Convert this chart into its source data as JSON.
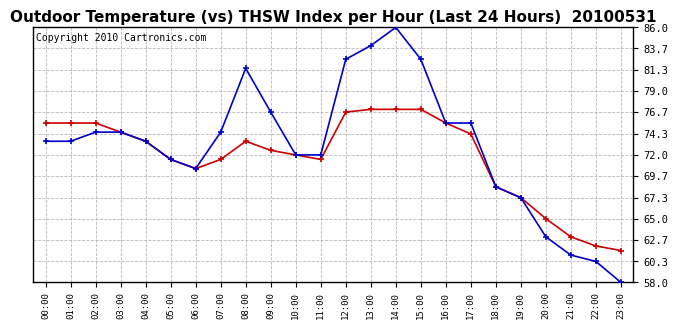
{
  "title": "Outdoor Temperature (vs) THSW Index per Hour (Last 24 Hours)  20100531",
  "copyright": "Copyright 2010 Cartronics.com",
  "hours": [
    "00:00",
    "01:00",
    "02:00",
    "03:00",
    "04:00",
    "05:00",
    "06:00",
    "07:00",
    "08:00",
    "09:00",
    "10:00",
    "11:00",
    "12:00",
    "13:00",
    "14:00",
    "15:00",
    "16:00",
    "17:00",
    "18:00",
    "19:00",
    "20:00",
    "21:00",
    "22:00",
    "23:00"
  ],
  "temp_red": [
    75.5,
    75.5,
    75.5,
    74.5,
    73.5,
    71.5,
    70.5,
    71.5,
    73.5,
    72.5,
    72.0,
    71.5,
    76.7,
    77.0,
    77.0,
    77.0,
    75.5,
    74.3,
    68.5,
    67.3,
    65.0,
    63.0,
    62.0,
    61.5
  ],
  "thsw_blue": [
    73.5,
    73.5,
    74.5,
    74.5,
    73.5,
    71.5,
    70.5,
    74.5,
    81.5,
    76.7,
    72.0,
    72.0,
    82.5,
    84.0,
    86.0,
    82.5,
    75.5,
    75.5,
    68.5,
    67.3,
    63.0,
    61.0,
    60.3,
    58.0
  ],
  "ylim": [
    58.0,
    86.0
  ],
  "yticks": [
    58.0,
    60.3,
    62.7,
    65.0,
    67.3,
    69.7,
    72.0,
    74.3,
    76.7,
    79.0,
    81.3,
    83.7,
    86.0
  ],
  "red_color": "#cc0000",
  "blue_color": "#0000cc",
  "bg_color": "#ffffff",
  "grid_color": "#b0b0b0",
  "title_fontsize": 11,
  "copyright_fontsize": 7
}
